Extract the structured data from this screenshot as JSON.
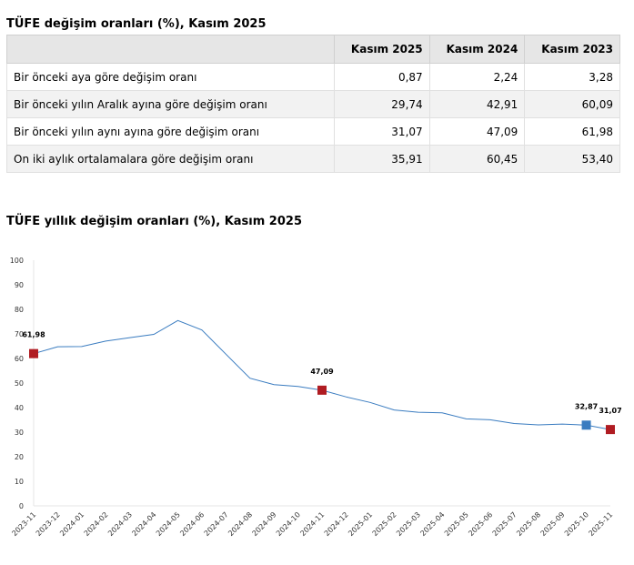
{
  "table": {
    "title": "TÜFE değişim oranları (%), Kasım 2025",
    "columns": [
      "",
      "Kasım 2025",
      "Kasım 2024",
      "Kasım 2023"
    ],
    "rows": [
      {
        "label": "Bir önceki aya göre değişim oranı",
        "values": [
          "0,87",
          "2,24",
          "3,28"
        ]
      },
      {
        "label": "Bir önceki yılın Aralık ayına göre değişim oranı",
        "values": [
          "29,74",
          "42,91",
          "60,09"
        ]
      },
      {
        "label": "Bir önceki yılın aynı ayına göre değişim oranı",
        "values": [
          "31,07",
          "47,09",
          "61,98"
        ]
      },
      {
        "label": "On iki aylık ortalamalara göre değişim oranı",
        "values": [
          "35,91",
          "60,45",
          "53,40"
        ]
      }
    ]
  },
  "chart_data": {
    "type": "line",
    "title": "TÜFE yıllık değişim oranları (%), Kasım 2025",
    "xlabel": "",
    "ylabel": "",
    "ylim": [
      0,
      100
    ],
    "yticks": [
      "0",
      "10",
      "20",
      "30",
      "40",
      "50",
      "60",
      "70",
      "80",
      "90",
      "100"
    ],
    "grid": false,
    "legend": "none",
    "categories": [
      "2023-11",
      "2023-12",
      "2024-01",
      "2024-02",
      "2024-03",
      "2024-04",
      "2024-05",
      "2024-06",
      "2024-07",
      "2024-08",
      "2024-09",
      "2024-10",
      "2024-11",
      "2024-12",
      "2025-01",
      "2025-02",
      "2025-03",
      "2025-04",
      "2025-05",
      "2025-06",
      "2025-07",
      "2025-08",
      "2025-09",
      "2025-10",
      "2025-11"
    ],
    "series": [
      {
        "values": [
          61.98,
          64.77,
          64.86,
          67.07,
          68.5,
          69.8,
          75.45,
          71.6,
          61.78,
          51.97,
          49.38,
          48.58,
          47.09,
          44.38,
          42.12,
          39.05,
          38.1,
          37.86,
          35.41,
          35.05,
          33.52,
          32.95,
          33.29,
          32.87,
          31.07
        ],
        "color": "#3a7cc0"
      }
    ],
    "markers": [
      {
        "category": "2023-11",
        "value": 61.98,
        "label": "61,98",
        "color": "#b01c22"
      },
      {
        "category": "2024-11",
        "value": 47.09,
        "label": "47,09",
        "color": "#b01c22"
      },
      {
        "category": "2025-10",
        "value": 32.87,
        "label": "32,87",
        "color": "#3a7cc0"
      },
      {
        "category": "2025-11",
        "value": 31.07,
        "label": "31,07",
        "color": "#b01c22"
      }
    ]
  }
}
